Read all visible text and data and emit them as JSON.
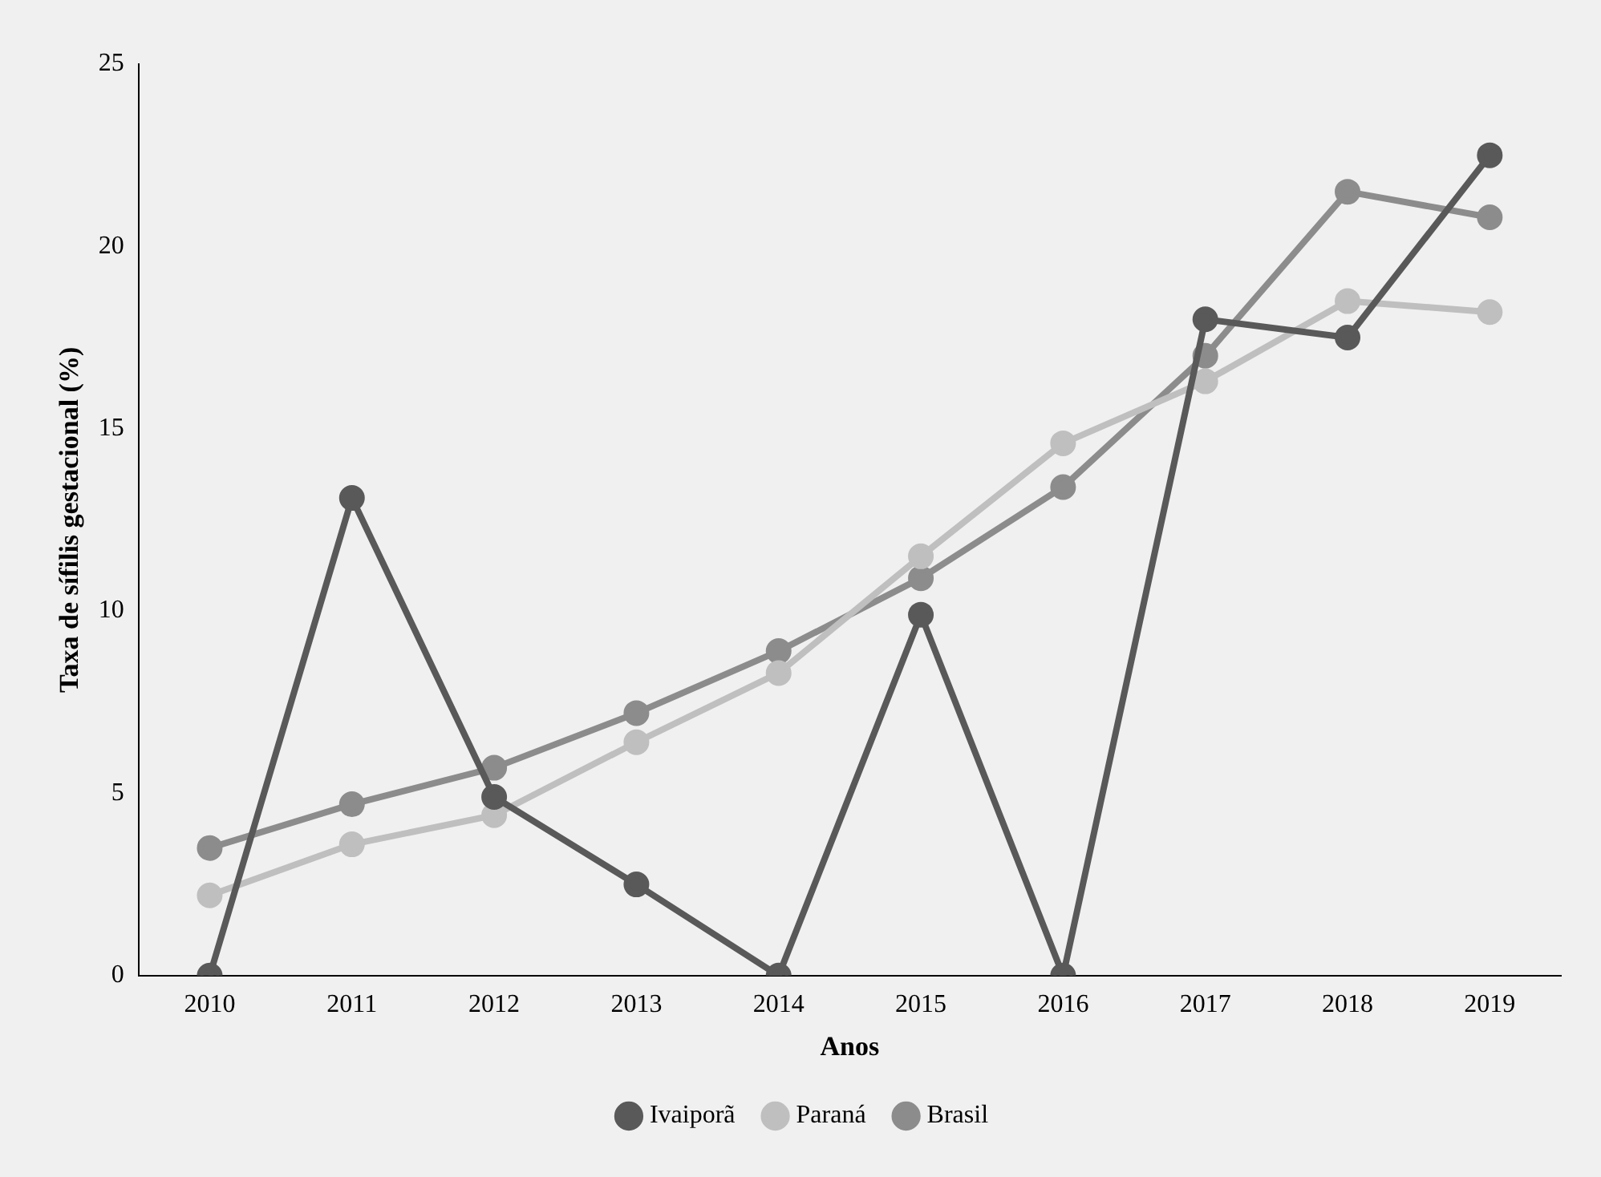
{
  "chart_data": {
    "type": "line",
    "xlabel": "Anos",
    "ylabel": "Taxa de sífilis gestacional (%)",
    "categories": [
      "2010",
      "2011",
      "2012",
      "2013",
      "2014",
      "2015",
      "2016",
      "2017",
      "2018",
      "2019"
    ],
    "series": [
      {
        "name": "Ivaiporã",
        "color": "#595959",
        "values": [
          0,
          13.1,
          4.9,
          2.5,
          0,
          9.9,
          0,
          18.0,
          17.5,
          22.5
        ]
      },
      {
        "name": "Paraná",
        "color": "#bfbfbf",
        "values": [
          2.2,
          3.6,
          4.4,
          6.4,
          8.3,
          11.5,
          14.6,
          16.3,
          18.5,
          18.2
        ]
      },
      {
        "name": "Brasil",
        "color": "#8c8c8c",
        "values": [
          3.5,
          4.7,
          5.7,
          7.2,
          8.9,
          10.9,
          13.4,
          17.0,
          21.5,
          20.8
        ]
      }
    ],
    "ylim": [
      0,
      25
    ],
    "yticks": [
      0,
      5,
      10,
      15,
      20,
      25
    ],
    "grid": false,
    "legend": "bottom",
    "marker": "circle",
    "line_style": "solid"
  }
}
